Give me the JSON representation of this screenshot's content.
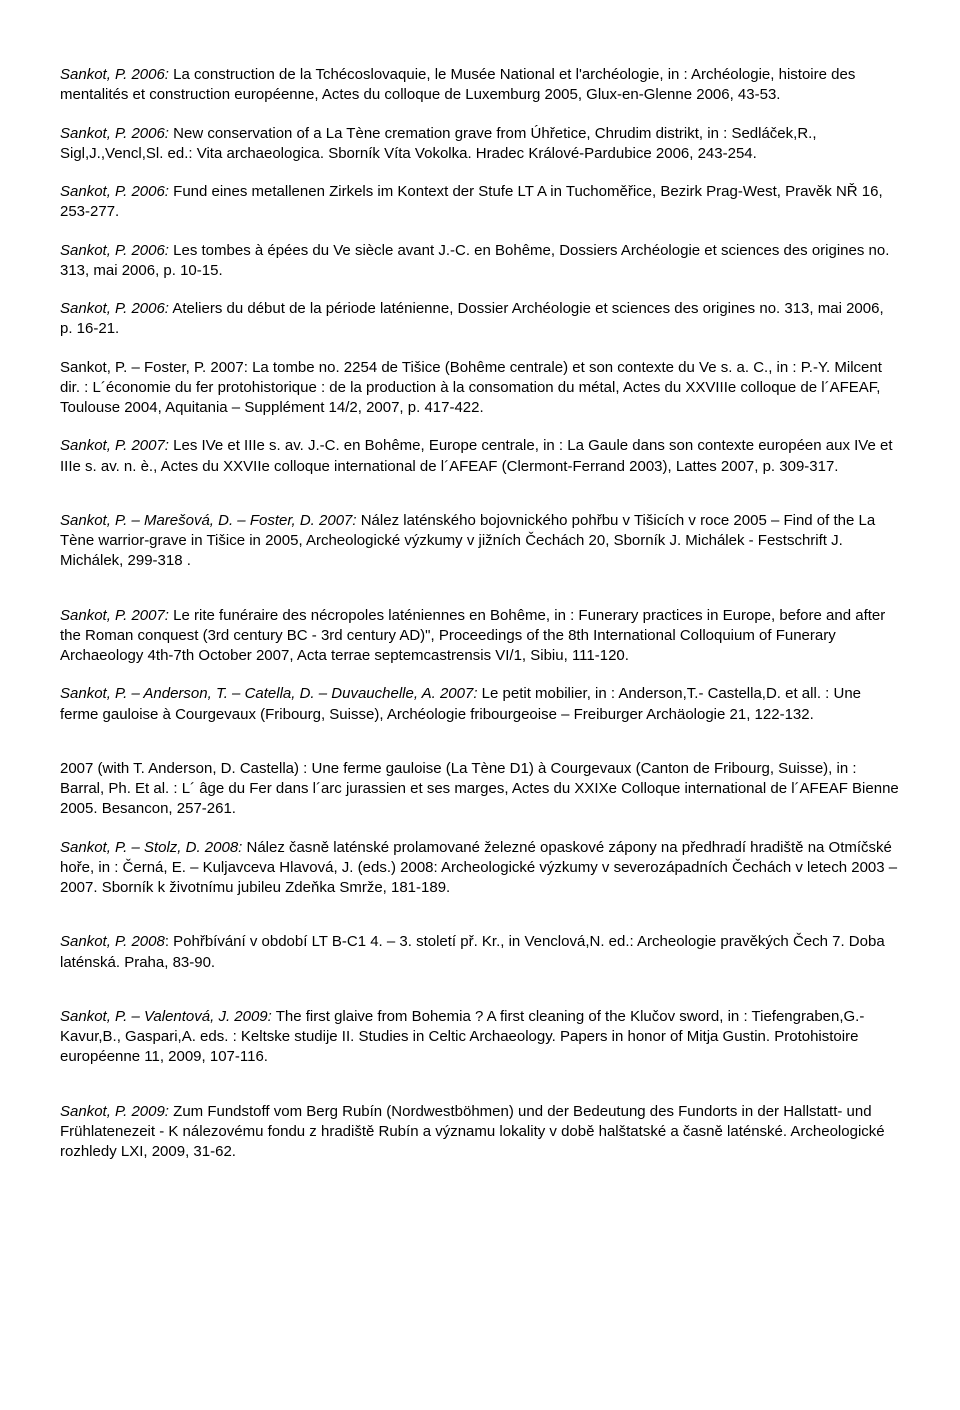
{
  "entries": [
    {
      "author": "Sankot, P. 2006:",
      "authorItalic": true,
      "rest": " La construction  de la Tchécoslovaquie, le Musée National et l'archéologie, in : Archéologie, histoire des mentalités et construction européenne, Actes du colloque de  Luxemburg 2005, Glux-en-Glenne 2006, 43-53.",
      "gap": false
    },
    {
      "author": "Sankot, P. 2006:",
      "authorItalic": true,
      "rest": " New conservation of a La Tène cremation grave from Úhřetice, Chrudim distrikt, in : Sedláček,R., Sigl,J.,Vencl,Sl. ed.: Vita archaeologica. Sborník Víta Vokolka. Hradec Králové-Pardubice 2006, 243-254.",
      "gap": false
    },
    {
      "author": "Sankot, P. 2006:",
      "authorItalic": true,
      "rest": " Fund eines metallenen Zirkels im Kontext der Stufe LT A in Tuchoměřice, Bezirk Prag-West, Pravěk NŘ 16, 253-277.",
      "gap": false
    },
    {
      "author": "Sankot, P. 2006:",
      "authorItalic": true,
      "rest": " Les tombes à épées du Ve siècle avant J.-C. en Bohême, Dossiers  Archéologie et sciences des origines no. 313, mai 2006, p. 10-15.",
      "gap": false
    },
    {
      "author": "Sankot, P. 2006:",
      "authorItalic": true,
      "rest": " Ateliers du début de la période laténienne, Dossier Archéologie et sciences des origines no. 313, mai 2006, p. 16-21.",
      "gap": false
    },
    {
      "author": "",
      "authorItalic": false,
      "rest": "Sankot, P. – Foster, P. 2007: La tombe no. 2254 de Tišice (Bohême centrale) et son contexte du Ve s. a. C., in : P.-Y. Milcent dir. : L´économie du fer protohistorique : de la production à la consomation du métal, Actes du XXVIIIe colloque de l´AFEAF, Toulouse 2004, Aquitania – Supplément 14/2, 2007, p. 417-422.",
      "gap": false
    },
    {
      "author": "Sankot, P. 2007:",
      "authorItalic": true,
      "rest": " Les IVe et IIIe s. av. J.-C. en Bohême, Europe centrale, in : La Gaule dans son contexte européen aux IVe et IIIe s. av. n. è., Actes du XXVIIe colloque international de l´AFEAF (Clermont-Ferrand 2003),  Lattes 2007, p. 309-317.",
      "gap": true
    },
    {
      "author": "Sankot, P. – Marešová, D.  – Foster, D. 2007:",
      "authorItalic": true,
      "rest": " Nález laténského bojovnického pohřbu v Tišicích v roce 2005 – Find of the La Tène warrior-grave in Tišice in 2005, Archeologické výzkumy v jižních Čechách 20, Sborník J. Michálek - Festschrift J. Michálek, 299-318 .",
      "gap": true
    },
    {
      "author": "Sankot, P. 2007:",
      "authorItalic": true,
      "rest": " Le rite funéraire des nécropoles laténiennes en Bohême, in : Funerary practices in Europe, before and after the Roman conquest (3rd century BC - 3rd century AD)\", Proceedings of the 8th International Colloquium of Funerary Archaeology 4th-7th  October 2007,  Acta terrae septemcastrensis VI/1, Sibiu, 111-120.",
      "gap": false
    },
    {
      "author": "Sankot, P. – Anderson, T. – Catella, D. – Duvauchelle, A. 2007:",
      "authorItalic": true,
      "rest": "  Le petit mobilier, in : Anderson,T.- Castella,D. et all. : Une ferme gauloise à Courgevaux (Fribourg, Suisse), Archéologie fribourgeoise – Freiburger Archäologie 21, 122-132.",
      "gap": true
    },
    {
      "author": "",
      "authorItalic": false,
      "rest": "2007 (with T. Anderson, D. Castella) : Une ferme gauloise (La Tène D1) à Courgevaux (Canton de Fribourg, Suisse), in : Barral, Ph. Et al. : L´ âge du Fer dans l´arc jurassien et ses marges, Actes du XXIXe Colloque international de l´AFEAF Bienne 2005.  Besancon, 257-261.",
      "gap": false
    },
    {
      "author": "Sankot, P. – Stolz, D. 2008:",
      "authorItalic": true,
      "rest": " Nález časně laténské prolamované železné opaskové zápony na předhradí hradiště na  Otmíčské hoře, in : Černá, E. – Kuljavceva Hlavová, J. (eds.) 2008: Archeologické výzkumy v severozápadních Čechách v letech 2003 – 2007. Sborník k životnímu jubileu Zdeňka Smrže, 181-189.",
      "gap": true
    },
    {
      "author": "Sankot, P. 2008",
      "authorItalic": true,
      "rest": ": Pohřbívání v období LT B-C1 4. – 3. století př. Kr., in Venclová,N. ed.: Archeologie pravěkých Čech 7. Doba laténská. Praha,  83-90.",
      "gap": true
    },
    {
      "author": "Sankot, P.  – Valentová, J. 2009:",
      "authorItalic": true,
      "rest": " The first glaive from Bohemia ? A first cleaning of the   Klučov sword, in : Tiefengraben,G.- Kavur,B., Gaspari,A. eds. : Keltske studije II. Studies in Celtic Archaeology. Papers in honor of Mitja Gustin. Protohistoire européenne 11,  2009, 107-116.",
      "gap": true
    },
    {
      "author": "Sankot, P. 2009:",
      "authorItalic": true,
      "rest": " Zum Fundstoff vom Berg Rubín (Nordwestböhmen) und der Bedeutung des Fundorts in der Hallstatt- und Frühlatenezeit - K nálezovému fondu z hradiště Rubín a významu lokality v době halštatské a časně laténské. Archeologické rozhledy LXI, 2009, 31-62.",
      "gap": false
    }
  ]
}
